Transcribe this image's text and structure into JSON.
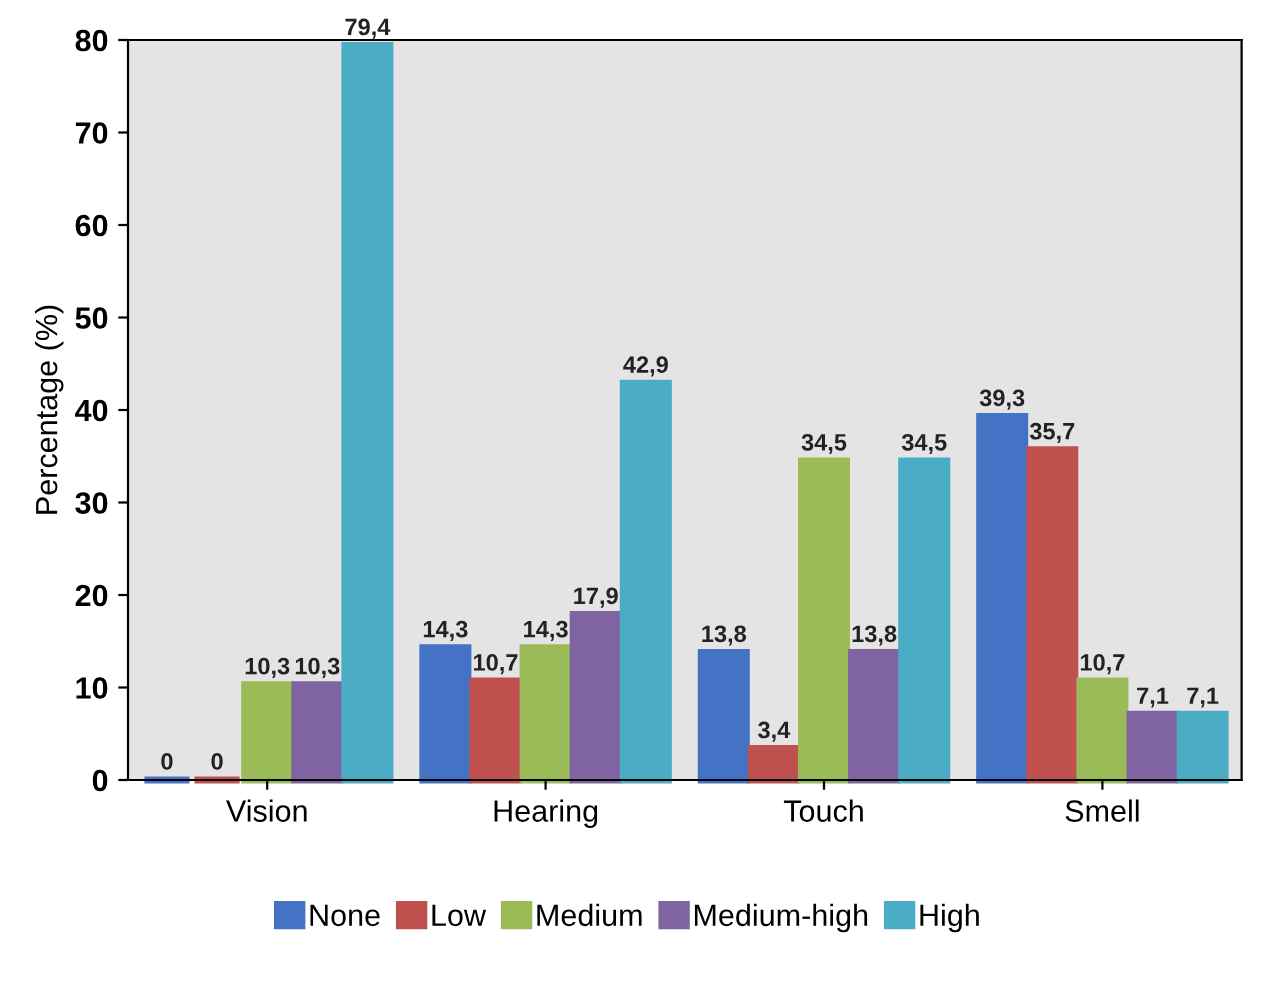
{
  "chart_data": {
    "type": "bar",
    "ylabel": "Percentage (%)",
    "categories": [
      "Vision",
      "Hearing",
      "Touch",
      "Smell"
    ],
    "series": [
      {
        "name": "None",
        "color": "#4472c4",
        "values": [
          0,
          14.3,
          13.8,
          39.3
        ],
        "value_labels": [
          "0",
          "14,3",
          "13,8",
          "39,3"
        ]
      },
      {
        "name": "Low",
        "color": "#c0504d",
        "values": [
          0,
          10.7,
          3.4,
          35.7
        ],
        "value_labels": [
          "0",
          "10,7",
          "3,4",
          "35,7"
        ]
      },
      {
        "name": "Medium",
        "color": "#9bbb59",
        "values": [
          10.3,
          14.3,
          34.5,
          10.7
        ],
        "value_labels": [
          "10,3",
          "14,3",
          "34,5",
          "10,7"
        ]
      },
      {
        "name": "Medium-high",
        "color": "#8064a2",
        "values": [
          10.3,
          17.9,
          13.8,
          7.1
        ],
        "value_labels": [
          "10,3",
          "17,9",
          "13,8",
          "7,1"
        ]
      },
      {
        "name": "High",
        "color": "#4bacc6",
        "values": [
          79.4,
          42.9,
          34.5,
          7.1
        ],
        "value_labels": [
          "79,4",
          "42,9",
          "34,5",
          "7,1"
        ]
      }
    ],
    "ylim": [
      0,
      80
    ],
    "yticks": [
      0,
      10,
      20,
      30,
      40,
      50,
      60,
      70,
      80
    ],
    "grid": false,
    "legend": "bottom"
  }
}
